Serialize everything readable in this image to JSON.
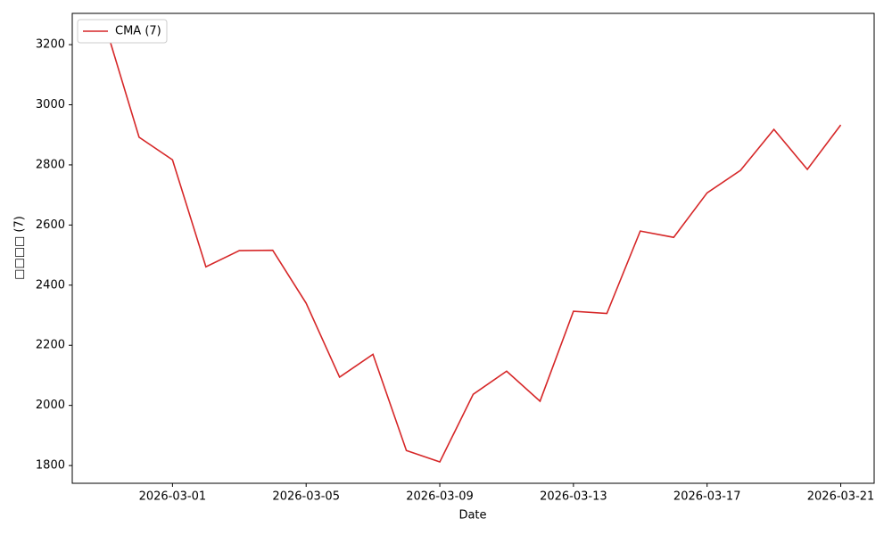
{
  "chart_data": {
    "type": "line",
    "x_label": "Date",
    "y_label": "□□□□ (7)",
    "x": [
      "2026-02-27",
      "2026-02-28",
      "2026-03-01",
      "2026-03-02",
      "2026-03-03",
      "2026-03-04",
      "2026-03-05",
      "2026-03-06",
      "2026-03-07",
      "2026-03-08",
      "2026-03-09",
      "2026-03-10",
      "2026-03-11",
      "2026-03-12",
      "2026-03-13",
      "2026-03-14",
      "2026-03-15",
      "2026-03-16",
      "2026-03-17",
      "2026-03-18",
      "2026-03-19",
      "2026-03-20",
      "2026-03-21"
    ],
    "series": [
      {
        "name": "CMA (7)",
        "color": "#d62728",
        "values": [
          3260,
          2892,
          2817,
          2461,
          2515,
          2516,
          2340,
          2094,
          2170,
          1850,
          1812,
          2037,
          2114,
          2014,
          2313,
          2306,
          2580,
          2559,
          2707,
          2782,
          2918,
          2785,
          2933
        ]
      }
    ],
    "xlim": [
      "2026-02-26",
      "2026-03-22"
    ],
    "xticks": [
      "2026-03-01",
      "2026-03-05",
      "2026-03-09",
      "2026-03-13",
      "2026-03-17",
      "2026-03-21"
    ],
    "ylim": [
      1741,
      3304
    ],
    "yticks": [
      1800,
      2000,
      2200,
      2400,
      2600,
      2800,
      3000,
      3200
    ],
    "legend": "upper left",
    "grid": false
  }
}
